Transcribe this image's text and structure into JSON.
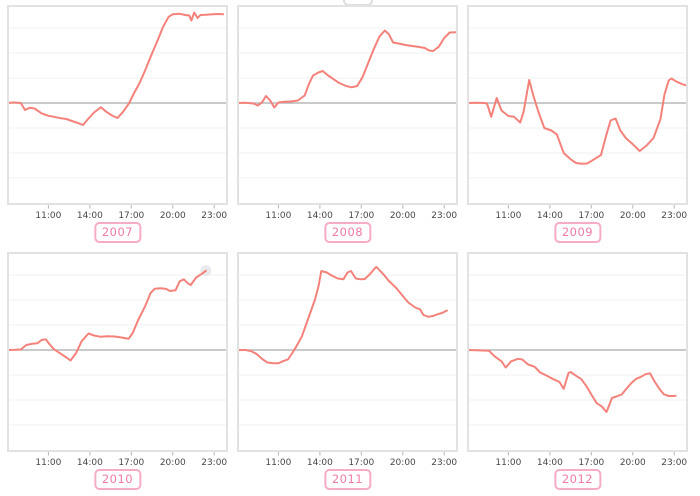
{
  "page": {
    "background": "#ffffff",
    "top_cutoff_element": "partially-visible label box clipped at top edge"
  },
  "style": {
    "line_color": "#f4827b",
    "zero_line_color": "#ababab",
    "grid_color": "#f0f0f0",
    "border_color": "#e2e2e2",
    "tick_color": "#b5b5b5",
    "tick_label_color": "#474747",
    "year_text_color": "#f17aa6",
    "year_border_color": "#f6abc7",
    "endpoint_halo_color": "#eaeaee"
  },
  "axis": {
    "tick_labels": [
      "11:00",
      "14:00",
      "17:00",
      "20:00",
      "23:00"
    ],
    "tick_hours": [
      11,
      14,
      17,
      20,
      23
    ],
    "x_domain_hours": [
      8,
      24
    ],
    "y_domain_units": [
      -4.08,
      3.92
    ],
    "gridline_step_units": 1,
    "zero_baseline": true,
    "grid_on": true,
    "y_axis_labels_visible": false
  },
  "chart_data": [
    {
      "type": "line",
      "label": "2007",
      "legend": "none",
      "x": "time of day (hours)",
      "points": [
        [
          8.0,
          0
        ],
        [
          8.5,
          0.02
        ],
        [
          9.0,
          0
        ],
        [
          9.3,
          -0.28
        ],
        [
          9.65,
          -0.19
        ],
        [
          10.0,
          -0.22
        ],
        [
          10.5,
          -0.41
        ],
        [
          11.0,
          -0.51
        ],
        [
          11.4,
          -0.55
        ],
        [
          11.9,
          -0.61
        ],
        [
          12.3,
          -0.64
        ],
        [
          12.7,
          -0.72
        ],
        [
          13.2,
          -0.81
        ],
        [
          13.5,
          -0.88
        ],
        [
          13.9,
          -0.62
        ],
        [
          14.3,
          -0.38
        ],
        [
          14.8,
          -0.17
        ],
        [
          15.2,
          -0.35
        ],
        [
          15.6,
          -0.5
        ],
        [
          16.0,
          -0.6
        ],
        [
          16.4,
          -0.35
        ],
        [
          16.85,
          0.0
        ],
        [
          17.2,
          0.4
        ],
        [
          17.6,
          0.8
        ],
        [
          18.0,
          1.3
        ],
        [
          18.4,
          1.85
        ],
        [
          18.9,
          2.5
        ],
        [
          19.3,
          3.05
        ],
        [
          19.7,
          3.45
        ],
        [
          20.0,
          3.55
        ],
        [
          20.5,
          3.57
        ],
        [
          20.9,
          3.52
        ],
        [
          21.2,
          3.5
        ],
        [
          21.35,
          3.3
        ],
        [
          21.55,
          3.62
        ],
        [
          21.8,
          3.4
        ],
        [
          22.0,
          3.52
        ],
        [
          22.4,
          3.53
        ],
        [
          22.9,
          3.55
        ],
        [
          23.3,
          3.56
        ],
        [
          23.65,
          3.55
        ]
      ]
    },
    {
      "type": "line",
      "label": "2008",
      "legend": "none",
      "x": "time of day (hours)",
      "points": [
        [
          8.0,
          0
        ],
        [
          8.6,
          0.01
        ],
        [
          9.2,
          -0.02
        ],
        [
          9.5,
          -0.1
        ],
        [
          9.8,
          0.02
        ],
        [
          10.1,
          0.28
        ],
        [
          10.4,
          0.1
        ],
        [
          10.7,
          -0.18
        ],
        [
          11.0,
          0.02
        ],
        [
          11.4,
          0.05
        ],
        [
          11.9,
          0.06
        ],
        [
          12.4,
          0.1
        ],
        [
          12.9,
          0.3
        ],
        [
          13.2,
          0.75
        ],
        [
          13.5,
          1.1
        ],
        [
          13.9,
          1.22
        ],
        [
          14.2,
          1.28
        ],
        [
          14.6,
          1.1
        ],
        [
          15.0,
          0.95
        ],
        [
          15.4,
          0.8
        ],
        [
          15.9,
          0.68
        ],
        [
          16.3,
          0.63
        ],
        [
          16.7,
          0.68
        ],
        [
          17.1,
          1.05
        ],
        [
          17.5,
          1.6
        ],
        [
          17.9,
          2.15
        ],
        [
          18.3,
          2.65
        ],
        [
          18.7,
          2.9
        ],
        [
          19.0,
          2.75
        ],
        [
          19.3,
          2.42
        ],
        [
          19.7,
          2.38
        ],
        [
          20.2,
          2.32
        ],
        [
          20.7,
          2.28
        ],
        [
          21.2,
          2.24
        ],
        [
          21.6,
          2.2
        ],
        [
          21.9,
          2.1
        ],
        [
          22.2,
          2.08
        ],
        [
          22.6,
          2.25
        ],
        [
          23.0,
          2.6
        ],
        [
          23.4,
          2.82
        ],
        [
          23.9,
          2.83
        ]
      ]
    },
    {
      "type": "line",
      "label": "2009",
      "legend": "none",
      "x": "time of day (hours)",
      "points": [
        [
          8.0,
          0
        ],
        [
          8.7,
          0.01
        ],
        [
          9.2,
          0
        ],
        [
          9.45,
          -0.02
        ],
        [
          9.75,
          -0.55
        ],
        [
          10.15,
          0.2
        ],
        [
          10.5,
          -0.3
        ],
        [
          11.0,
          -0.52
        ],
        [
          11.4,
          -0.55
        ],
        [
          11.85,
          -0.78
        ],
        [
          12.1,
          -0.35
        ],
        [
          12.5,
          0.92
        ],
        [
          12.8,
          0.3
        ],
        [
          13.2,
          -0.4
        ],
        [
          13.6,
          -1.0
        ],
        [
          14.1,
          -1.1
        ],
        [
          14.5,
          -1.25
        ],
        [
          15.0,
          -2.0
        ],
        [
          15.5,
          -2.25
        ],
        [
          15.9,
          -2.4
        ],
        [
          16.3,
          -2.43
        ],
        [
          16.7,
          -2.42
        ],
        [
          17.2,
          -2.25
        ],
        [
          17.7,
          -2.08
        ],
        [
          18.1,
          -1.25
        ],
        [
          18.4,
          -0.7
        ],
        [
          18.75,
          -0.62
        ],
        [
          19.1,
          -1.1
        ],
        [
          19.5,
          -1.4
        ],
        [
          20.0,
          -1.65
        ],
        [
          20.5,
          -1.92
        ],
        [
          21.0,
          -1.7
        ],
        [
          21.5,
          -1.4
        ],
        [
          22.0,
          -0.65
        ],
        [
          22.3,
          0.35
        ],
        [
          22.6,
          0.9
        ],
        [
          22.8,
          0.98
        ],
        [
          23.2,
          0.85
        ],
        [
          23.6,
          0.75
        ],
        [
          23.9,
          0.7
        ]
      ]
    },
    {
      "type": "line",
      "label": "2010",
      "legend": "none",
      "x": "time of day (hours)",
      "end_marker": true,
      "points": [
        [
          8.0,
          0
        ],
        [
          8.6,
          0.01
        ],
        [
          9.0,
          0.02
        ],
        [
          9.4,
          0.2
        ],
        [
          9.8,
          0.25
        ],
        [
          10.2,
          0.27
        ],
        [
          10.5,
          0.4
        ],
        [
          10.8,
          0.43
        ],
        [
          11.1,
          0.22
        ],
        [
          11.4,
          0.03
        ],
        [
          11.9,
          -0.15
        ],
        [
          12.3,
          -0.3
        ],
        [
          12.6,
          -0.42
        ],
        [
          13.0,
          -0.12
        ],
        [
          13.4,
          0.35
        ],
        [
          13.9,
          0.66
        ],
        [
          14.3,
          0.58
        ],
        [
          14.8,
          0.53
        ],
        [
          15.3,
          0.55
        ],
        [
          15.8,
          0.54
        ],
        [
          16.3,
          0.5
        ],
        [
          16.8,
          0.45
        ],
        [
          17.1,
          0.68
        ],
        [
          17.5,
          1.2
        ],
        [
          18.0,
          1.75
        ],
        [
          18.4,
          2.28
        ],
        [
          18.7,
          2.45
        ],
        [
          19.1,
          2.47
        ],
        [
          19.5,
          2.45
        ],
        [
          19.8,
          2.36
        ],
        [
          20.2,
          2.39
        ],
        [
          20.5,
          2.75
        ],
        [
          20.8,
          2.83
        ],
        [
          21.1,
          2.67
        ],
        [
          21.3,
          2.6
        ],
        [
          21.7,
          2.9
        ],
        [
          22.1,
          3.05
        ],
        [
          22.4,
          3.17
        ]
      ]
    },
    {
      "type": "line",
      "label": "2011",
      "legend": "none",
      "x": "time of day (hours)",
      "points": [
        [
          8.0,
          0
        ],
        [
          8.6,
          0
        ],
        [
          9.0,
          -0.04
        ],
        [
          9.4,
          -0.15
        ],
        [
          9.8,
          -0.35
        ],
        [
          10.2,
          -0.5
        ],
        [
          10.6,
          -0.53
        ],
        [
          11.0,
          -0.53
        ],
        [
          11.3,
          -0.45
        ],
        [
          11.7,
          -0.37
        ],
        [
          12.0,
          -0.12
        ],
        [
          12.3,
          0.15
        ],
        [
          12.7,
          0.55
        ],
        [
          13.0,
          1.02
        ],
        [
          13.3,
          1.48
        ],
        [
          13.65,
          2.02
        ],
        [
          13.9,
          2.55
        ],
        [
          14.1,
          3.16
        ],
        [
          14.5,
          3.1
        ],
        [
          14.85,
          2.98
        ],
        [
          15.3,
          2.86
        ],
        [
          15.7,
          2.83
        ],
        [
          16.0,
          3.1
        ],
        [
          16.25,
          3.16
        ],
        [
          16.6,
          2.86
        ],
        [
          16.95,
          2.83
        ],
        [
          17.25,
          2.84
        ],
        [
          17.6,
          3.02
        ],
        [
          18.0,
          3.28
        ],
        [
          18.1,
          3.32
        ],
        [
          18.6,
          3.03
        ],
        [
          19.0,
          2.76
        ],
        [
          19.5,
          2.5
        ],
        [
          20.0,
          2.16
        ],
        [
          20.4,
          1.9
        ],
        [
          20.9,
          1.7
        ],
        [
          21.25,
          1.63
        ],
        [
          21.5,
          1.4
        ],
        [
          21.85,
          1.33
        ],
        [
          22.2,
          1.36
        ],
        [
          22.5,
          1.43
        ],
        [
          22.85,
          1.48
        ],
        [
          23.2,
          1.58
        ]
      ]
    },
    {
      "type": "line",
      "label": "2012",
      "legend": "none",
      "x": "time of day (hours)",
      "points": [
        [
          8.0,
          0
        ],
        [
          8.7,
          -0.01
        ],
        [
          9.6,
          -0.03
        ],
        [
          10.0,
          -0.25
        ],
        [
          10.5,
          -0.45
        ],
        [
          10.8,
          -0.7
        ],
        [
          11.2,
          -0.45
        ],
        [
          11.7,
          -0.35
        ],
        [
          12.0,
          -0.38
        ],
        [
          12.4,
          -0.57
        ],
        [
          12.9,
          -0.67
        ],
        [
          13.3,
          -0.9
        ],
        [
          13.75,
          -1.02
        ],
        [
          14.2,
          -1.15
        ],
        [
          14.7,
          -1.28
        ],
        [
          15.0,
          -1.55
        ],
        [
          15.35,
          -0.92
        ],
        [
          15.5,
          -0.88
        ],
        [
          15.95,
          -1.05
        ],
        [
          16.25,
          -1.15
        ],
        [
          16.65,
          -1.45
        ],
        [
          17.0,
          -1.78
        ],
        [
          17.4,
          -2.13
        ],
        [
          17.75,
          -2.25
        ],
        [
          18.1,
          -2.48
        ],
        [
          18.5,
          -1.92
        ],
        [
          18.85,
          -1.85
        ],
        [
          19.2,
          -1.78
        ],
        [
          19.5,
          -1.58
        ],
        [
          19.9,
          -1.32
        ],
        [
          20.25,
          -1.15
        ],
        [
          20.6,
          -1.07
        ],
        [
          20.9,
          -0.97
        ],
        [
          21.25,
          -0.93
        ],
        [
          21.6,
          -1.28
        ],
        [
          21.95,
          -1.57
        ],
        [
          22.25,
          -1.77
        ],
        [
          22.6,
          -1.84
        ],
        [
          22.95,
          -1.84
        ],
        [
          23.1,
          -1.83
        ]
      ]
    }
  ]
}
